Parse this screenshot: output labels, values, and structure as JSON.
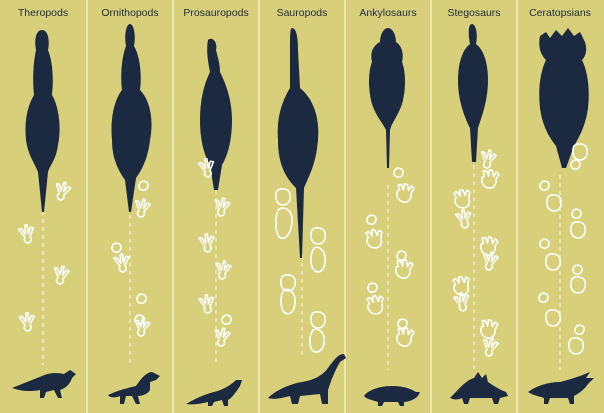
{
  "columns": [
    {
      "title": "Theropods"
    },
    {
      "title": "Ornithopods"
    },
    {
      "title": "Prosauropods"
    },
    {
      "title": "Sauropods"
    },
    {
      "title": "Ankylosaurs"
    },
    {
      "title": "Stegosaurs"
    },
    {
      "title": "Ceratopsians"
    }
  ],
  "colors": {
    "background": "#d8cf7b",
    "silhouette": "#1c2a41",
    "tracks": "#ffffff",
    "dividers": "#f4efcf"
  }
}
